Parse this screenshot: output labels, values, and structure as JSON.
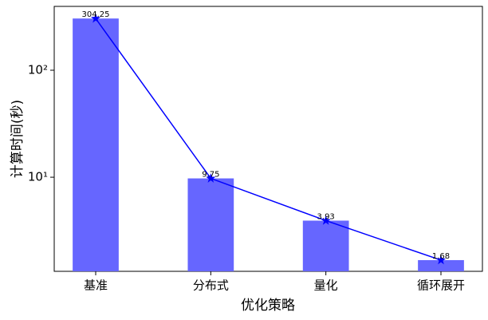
{
  "chart_data": {
    "type": "bar",
    "overlay": "line",
    "categories": [
      "基准",
      "分布式",
      "量化",
      "循环展开"
    ],
    "values": [
      304.25,
      9.75,
      3.93,
      1.68
    ],
    "color": "#6666ff",
    "line_color": "#0000ff",
    "ylabel": "计算时间(秒)",
    "xlabel": "优化策略",
    "log_y": true,
    "ylim": [
      1.32,
      395
    ],
    "yticks": [
      {
        "value": 10,
        "label": "10¹"
      },
      {
        "value": 100,
        "label": "10²"
      }
    ]
  }
}
